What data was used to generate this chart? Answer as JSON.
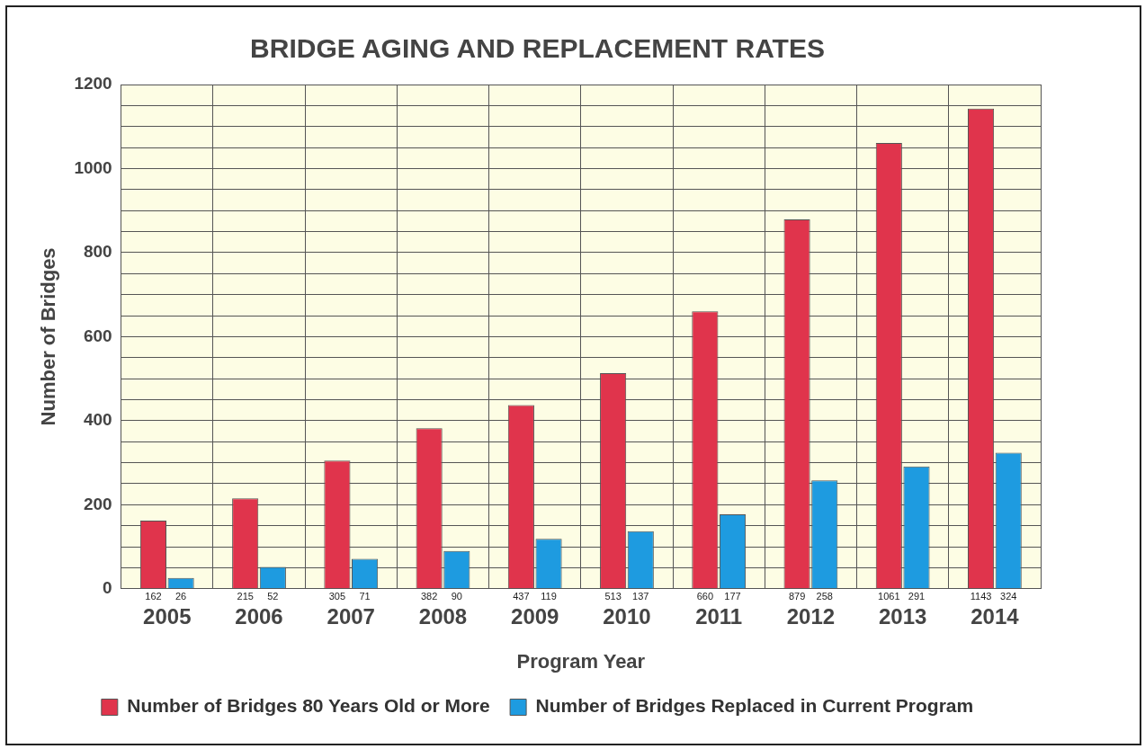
{
  "chart_data": {
    "type": "bar",
    "title": "BRIDGE AGING AND REPLACEMENT RATES",
    "xlabel": "Program Year",
    "ylabel": "Number of Bridges",
    "categories": [
      "2005",
      "2006",
      "2007",
      "2008",
      "2009",
      "2010",
      "2011",
      "2012",
      "2013",
      "2014"
    ],
    "series": [
      {
        "name": "Number of Bridges 80 Years Old or More",
        "color": "#e0344c",
        "values": [
          162,
          215,
          305,
          382,
          437,
          513,
          660,
          879,
          1061,
          1143
        ]
      },
      {
        "name": "Number of Bridges Replaced in Current Program",
        "color": "#1e9be0",
        "values": [
          26,
          52,
          71,
          90,
          119,
          137,
          177,
          258,
          291,
          324
        ]
      }
    ],
    "ylim": [
      0,
      1200
    ],
    "yticks": [
      0,
      {
        "value": 50,
        "label": null
      },
      {
        "value": 100,
        "label": null
      },
      {
        "value": 150,
        "label": null
      },
      200,
      {
        "value": 250,
        "label": null
      },
      {
        "value": 300,
        "label": null
      },
      {
        "value": 350,
        "label": null
      },
      400,
      {
        "value": 450,
        "label": null
      },
      {
        "value": 500,
        "label": null
      },
      {
        "value": 550,
        "label": null
      },
      600,
      {
        "value": 650,
        "label": null
      },
      {
        "value": 700,
        "label": null
      },
      {
        "value": 750,
        "label": null
      },
      800,
      {
        "value": 850,
        "label": null
      },
      {
        "value": 900,
        "label": null
      },
      {
        "value": 950,
        "label": null
      },
      1000,
      {
        "value": 1050,
        "label": null
      },
      {
        "value": 1100,
        "label": null
      },
      {
        "value": 1150,
        "label": null
      },
      1200
    ],
    "grid": true,
    "legend": "bottom",
    "data_labels": true
  }
}
